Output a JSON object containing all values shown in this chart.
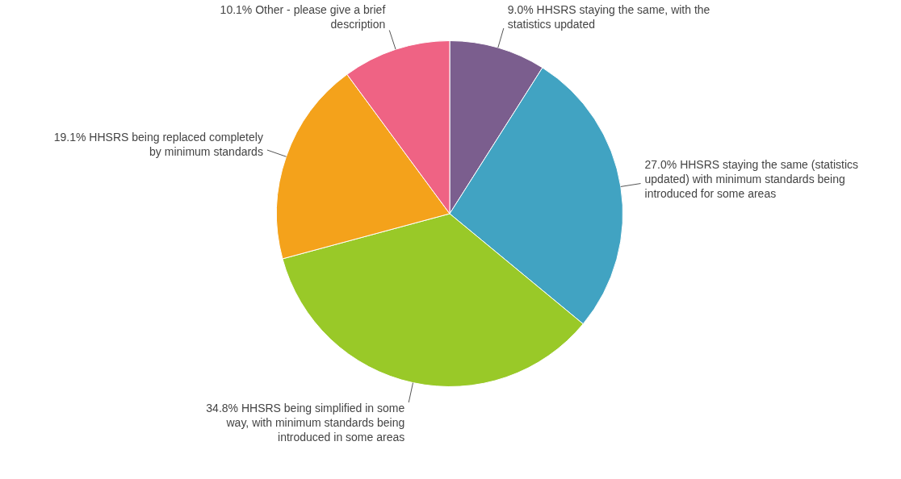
{
  "chart_data": {
    "type": "pie",
    "categories": [
      "HHSRS staying the same, with the statistics updated",
      "HHSRS staying the same (statistics updated) with minimum standards being introduced for some areas",
      "HHSRS being simplified in some way, with minimum standards being introduced in some areas",
      "HHSRS being replaced completely by minimum standards",
      "Other - please give a brief description"
    ],
    "values": [
      9.0,
      27.0,
      34.8,
      19.1,
      10.1
    ],
    "colors": [
      "#7b5e8e",
      "#41a3c2",
      "#99c928",
      "#f4a21b",
      "#ef6384"
    ],
    "value_labels": [
      "9.0%",
      "27.0%",
      "34.8%",
      "19.1%",
      "10.1%"
    ],
    "legend": false
  }
}
